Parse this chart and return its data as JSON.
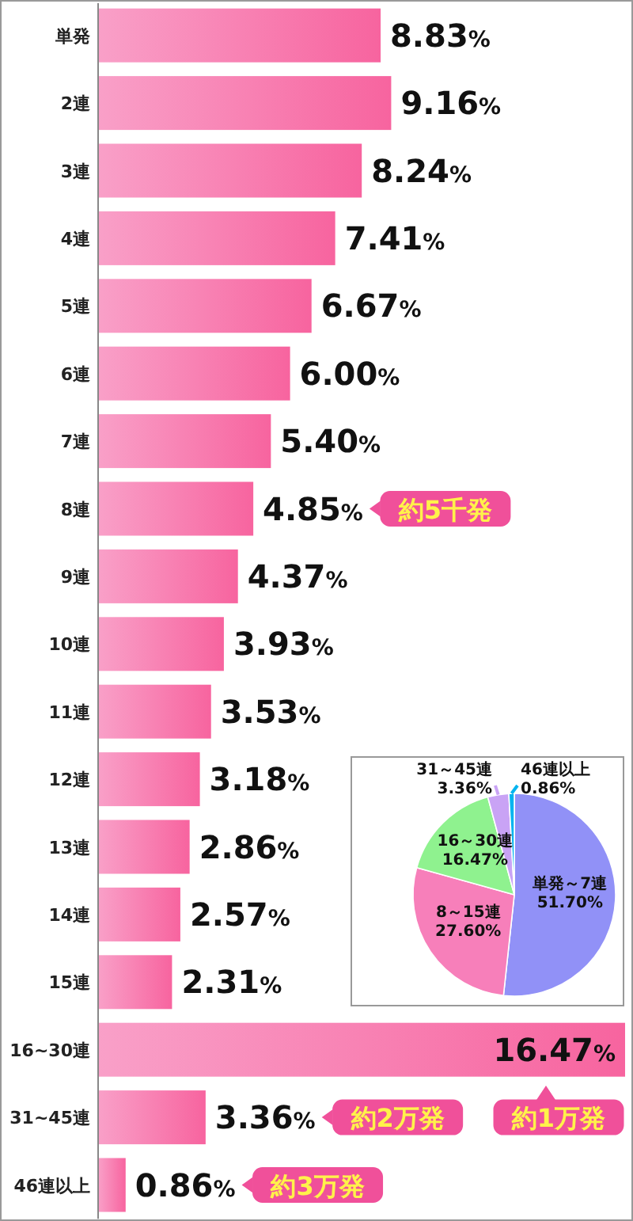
{
  "chart_data": [
    {
      "type": "bar",
      "orientation": "horizontal",
      "color": "#f7649f",
      "categories": [
        "単発",
        "2連",
        "3連",
        "4連",
        "5連",
        "6連",
        "7連",
        "8連",
        "9連",
        "10連",
        "11連",
        "12連",
        "13連",
        "14連",
        "15連",
        "16~30連",
        "31~45連",
        "46連以上"
      ],
      "values": [
        8.83,
        9.16,
        8.24,
        7.41,
        6.67,
        6.0,
        5.4,
        4.85,
        4.37,
        3.93,
        3.53,
        3.18,
        2.86,
        2.57,
        2.31,
        16.47,
        3.36,
        0.86
      ],
      "value_labels": [
        "8.83%",
        "9.16%",
        "8.24%",
        "7.41%",
        "6.67%",
        "6.00%",
        "5.40%",
        "4.85%",
        "4.37%",
        "3.93%",
        "3.53%",
        "3.18%",
        "2.86%",
        "2.57%",
        "2.31%",
        "16.47%",
        "3.36%",
        "0.86%"
      ],
      "annotations": [
        "約5千発",
        "約2万発",
        "約1万発",
        "約3万発"
      ]
    },
    {
      "type": "pie",
      "categories": [
        "単発～7連",
        "8～15連",
        "16～30連",
        "31～45連",
        "46連以上"
      ],
      "values": [
        51.7,
        27.6,
        16.47,
        3.36,
        0.86
      ],
      "colors": [
        "#9191f7",
        "#f77fba",
        "#8ff28f",
        "#c9a3f5",
        "#00b4f0"
      ],
      "value_labels": [
        "51.70%",
        "27.60%",
        "16.47%",
        "3.36%",
        "0.86%"
      ]
    }
  ]
}
